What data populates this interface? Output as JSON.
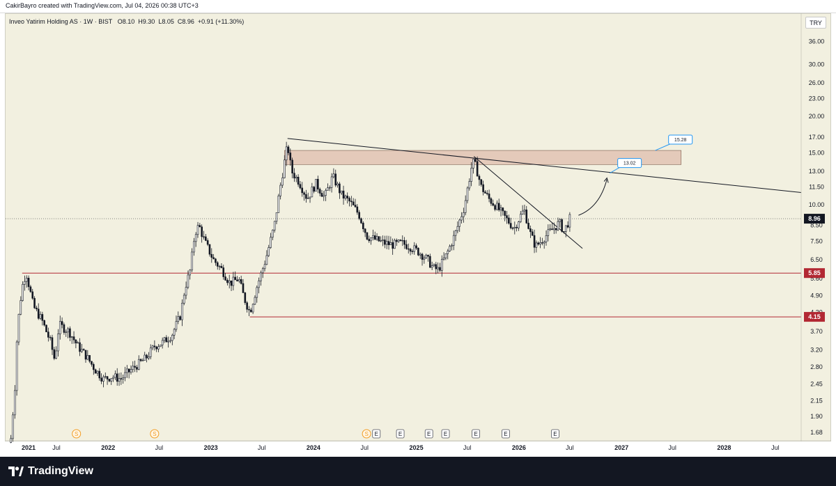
{
  "header": {
    "credit": "CakirBayro created with TradingView.com, Jul 04, 2026 00:38 UTC+3"
  },
  "legend": {
    "symbol": "Inveo Yatirim Holding AS · 1W · BIST",
    "open": "O8.10",
    "high": "H9.30",
    "low": "L8.05",
    "close": "C8.96",
    "change": "+0.91 (+11.30%)"
  },
  "currency": "TRY",
  "footer": {
    "brand": "TradingView"
  },
  "colors": {
    "background": "#f2f0e0",
    "up": "#131722",
    "down": "#131722",
    "support": "#b22833",
    "zone": "#e3c6b6",
    "callout": "#2196f3"
  },
  "chart_data": {
    "type": "candlestick",
    "scale": "log",
    "y_ticks": [
      "36.00",
      "30.00",
      "26.00",
      "23.00",
      "20.00",
      "17.00",
      "15.00",
      "13.00",
      "11.50",
      "10.00",
      "8.50",
      "7.50",
      "6.50",
      "5.60",
      "4.90",
      "4.30",
      "3.70",
      "3.20",
      "2.80",
      "2.45",
      "2.15",
      "1.90",
      "1.68"
    ],
    "x_ticks": [
      "2021",
      "Jul",
      "2022",
      "Jul",
      "2023",
      "Jul",
      "2024",
      "Jul",
      "2025",
      "Jul",
      "2026",
      "Jul",
      "2027",
      "Jul",
      "2028",
      "Jul"
    ],
    "x_range": [
      "2021-01-01",
      "2028-10-01"
    ],
    "y_range": [
      1.58,
      40.0
    ],
    "last_price": {
      "value": 8.96,
      "label": "8.96"
    },
    "support_levels": [
      {
        "value": 5.85,
        "label": "5.85",
        "start": "2021-03-01"
      },
      {
        "value": 4.15,
        "label": "4.15",
        "start": "2023-05-20"
      }
    ],
    "resistance_zone": {
      "low": 13.7,
      "high": 15.3,
      "start": "2023-09-20",
      "end": "2027-08-01"
    },
    "trendlines": [
      {
        "from": {
          "t": "2023-10-01",
          "p": 16.8
        },
        "to": {
          "t": "2028-10-01",
          "p": 11.0
        }
      },
      {
        "from": {
          "t": "2025-07-25",
          "p": 14.6
        },
        "to": {
          "t": "2026-08-15",
          "p": 7.1
        }
      }
    ],
    "targets": [
      {
        "value": 13.02,
        "label": "13.02",
        "anchor": {
          "t": "2026-11-20",
          "p": 12.8
        },
        "box": {
          "t": "2027-02-01",
          "p": 13.9
        }
      },
      {
        "value": 15.28,
        "label": "15.28",
        "anchor": {
          "t": "2027-05-01",
          "p": 15.3
        },
        "box": {
          "t": "2027-08-01",
          "p": 16.7
        }
      }
    ],
    "projection_arrow": {
      "from": {
        "t": "2026-08-01",
        "p": 9.2
      },
      "via": {
        "t": "2026-10-15",
        "p": 9.8
      },
      "to": {
        "t": "2026-11-10",
        "p": 12.2
      }
    },
    "events": [
      {
        "t": "2021-09-10",
        "kind": "S"
      },
      {
        "t": "2022-06-15",
        "kind": "S"
      },
      {
        "t": "2024-07-08",
        "kind": "S"
      },
      {
        "t": "2024-08-12",
        "kind": "E"
      },
      {
        "t": "2024-11-05",
        "kind": "E"
      },
      {
        "t": "2025-02-15",
        "kind": "E"
      },
      {
        "t": "2025-04-15",
        "kind": "E"
      },
      {
        "t": "2025-08-01",
        "kind": "E"
      },
      {
        "t": "2025-11-15",
        "kind": "E"
      },
      {
        "t": "2026-05-10",
        "kind": "E"
      }
    ],
    "price_path": [
      [
        "2021-01-20",
        1.6
      ],
      [
        "2021-02-03",
        2.4
      ],
      [
        "2021-02-12",
        3.8
      ],
      [
        "2021-02-28",
        5.2
      ],
      [
        "2021-03-15",
        5.9
      ],
      [
        "2021-04-10",
        4.5
      ],
      [
        "2021-05-10",
        4.05
      ],
      [
        "2021-06-10",
        3.4
      ],
      [
        "2021-06-25",
        2.95
      ],
      [
        "2021-07-10",
        3.9
      ],
      [
        "2021-08-15",
        3.7
      ],
      [
        "2021-09-15",
        3.3
      ],
      [
        "2021-10-15",
        3.05
      ],
      [
        "2021-11-15",
        2.75
      ],
      [
        "2021-12-15",
        2.55
      ],
      [
        "2022-01-15",
        2.6
      ],
      [
        "2022-02-15",
        2.55
      ],
      [
        "2022-03-15",
        2.7
      ],
      [
        "2022-04-15",
        2.85
      ],
      [
        "2022-05-15",
        3.0
      ],
      [
        "2022-06-15",
        3.3
      ],
      [
        "2022-07-15",
        3.4
      ],
      [
        "2022-08-15",
        3.6
      ],
      [
        "2022-09-15",
        4.2
      ],
      [
        "2022-10-01",
        5.2
      ],
      [
        "2022-10-20",
        6.0
      ],
      [
        "2022-11-05",
        8.0
      ],
      [
        "2022-11-20",
        8.5
      ],
      [
        "2022-12-10",
        7.5
      ],
      [
        "2023-01-10",
        6.5
      ],
      [
        "2023-02-10",
        6.0
      ],
      [
        "2023-03-10",
        5.4
      ],
      [
        "2023-04-10",
        5.6
      ],
      [
        "2023-04-30",
        4.8
      ],
      [
        "2023-05-20",
        4.3
      ],
      [
        "2023-06-15",
        5.3
      ],
      [
        "2023-07-15",
        6.5
      ],
      [
        "2023-08-15",
        8.5
      ],
      [
        "2023-09-05",
        11.5
      ],
      [
        "2023-09-20",
        14.0
      ],
      [
        "2023-10-01",
        16.0
      ],
      [
        "2023-10-15",
        13.0
      ],
      [
        "2023-11-10",
        12.0
      ],
      [
        "2023-12-10",
        10.5
      ],
      [
        "2024-01-10",
        11.8
      ],
      [
        "2024-02-10",
        10.6
      ],
      [
        "2024-03-10",
        12.5
      ],
      [
        "2024-04-10",
        10.8
      ],
      [
        "2024-05-10",
        10.2
      ],
      [
        "2024-06-10",
        9.3
      ],
      [
        "2024-07-10",
        7.8
      ],
      [
        "2024-08-10",
        7.6
      ],
      [
        "2024-09-10",
        7.4
      ],
      [
        "2024-10-10",
        7.3
      ],
      [
        "2024-11-10",
        7.4
      ],
      [
        "2024-12-10",
        7.2
      ],
      [
        "2025-01-10",
        6.9
      ],
      [
        "2025-02-10",
        6.5
      ],
      [
        "2025-03-01",
        6.1
      ],
      [
        "2025-03-20",
        6.0
      ],
      [
        "2025-04-20",
        6.8
      ],
      [
        "2025-05-20",
        8.0
      ],
      [
        "2025-06-20",
        9.8
      ],
      [
        "2025-07-20",
        14.0
      ],
      [
        "2025-08-01",
        13.5
      ],
      [
        "2025-08-20",
        11.5
      ],
      [
        "2025-09-15",
        10.5
      ],
      [
        "2025-10-15",
        9.8
      ],
      [
        "2025-11-15",
        9.0
      ],
      [
        "2025-12-15",
        8.3
      ],
      [
        "2026-01-10",
        9.3
      ],
      [
        "2026-01-20",
        9.6
      ],
      [
        "2026-02-10",
        8.0
      ],
      [
        "2026-03-01",
        7.2
      ],
      [
        "2026-03-20",
        7.5
      ],
      [
        "2026-04-10",
        7.9
      ],
      [
        "2026-05-10",
        8.4
      ],
      [
        "2026-05-25",
        8.7
      ],
      [
        "2026-06-10",
        8.1
      ],
      [
        "2026-07-01",
        8.96
      ]
    ]
  }
}
